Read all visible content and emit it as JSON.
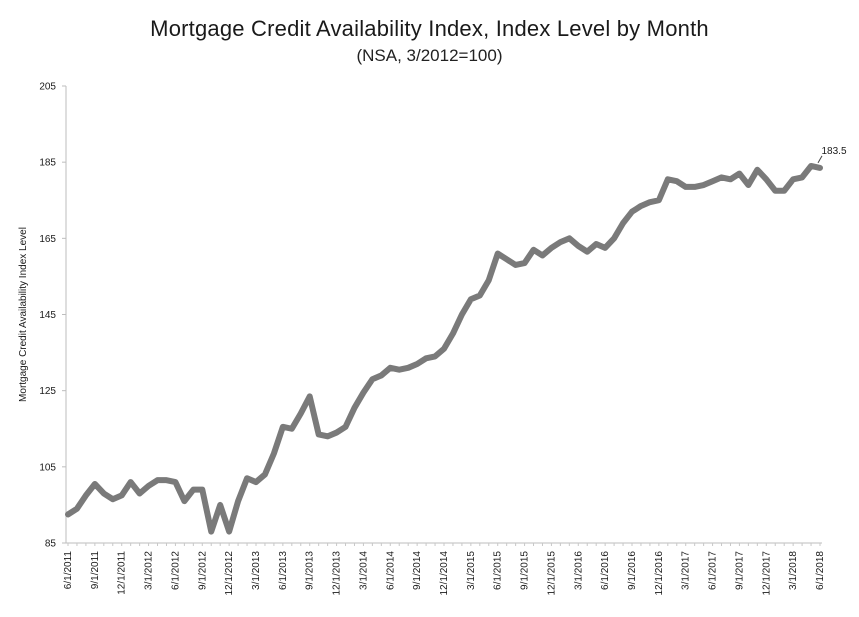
{
  "chart_data": {
    "type": "line",
    "title": "Mortgage Credit Availability Index, Index Level by Month",
    "subtitle": "(NSA, 3/2012=100)",
    "xlabel": "",
    "ylabel": "Mortgage Credit Availability Index Level",
    "ylim": [
      85,
      205
    ],
    "yticks": [
      85,
      105,
      125,
      145,
      165,
      185,
      205
    ],
    "grid": false,
    "xtick_labels": [
      "6/1/2011",
      "9/1/2011",
      "12/1/2011",
      "3/1/2012",
      "6/1/2012",
      "9/1/2012",
      "12/1/2012",
      "3/1/2013",
      "6/1/2013",
      "9/1/2013",
      "12/1/2013",
      "3/1/2014",
      "6/1/2014",
      "9/1/2014",
      "12/1/2014",
      "3/1/2015",
      "6/1/2015",
      "9/1/2015",
      "12/1/2015",
      "3/1/2016",
      "6/1/2016",
      "9/1/2016",
      "12/1/2016",
      "3/1/2017",
      "6/1/2017",
      "9/1/2017",
      "12/1/2017",
      "3/1/2018",
      "6/1/2018"
    ],
    "series": [
      {
        "name": "",
        "color": "#7a7a7a",
        "x_start": "6/1/2011",
        "frequency": "monthly",
        "values": [
          92.5,
          94,
          97.5,
          100.5,
          98,
          96.5,
          97.5,
          101,
          98,
          100,
          101.5,
          101.5,
          101,
          96,
          99,
          99,
          88,
          95,
          88,
          96,
          102,
          101,
          103,
          108.5,
          115.5,
          115,
          119,
          123.5,
          113.5,
          113,
          114,
          115.5,
          120.5,
          124.5,
          128,
          129,
          131,
          130.5,
          131,
          132,
          133.5,
          134,
          136,
          140,
          145,
          149,
          150,
          154,
          161,
          159.5,
          158,
          158.5,
          162,
          160.5,
          162.5,
          164,
          165,
          163,
          161.5,
          163.5,
          162.5,
          165,
          169,
          172,
          173.5,
          174.5,
          175,
          180.5,
          180,
          178.5,
          178.5,
          179,
          180,
          181,
          180.5,
          182,
          179,
          183,
          180.5,
          177.5,
          177.5,
          180.5,
          181,
          184,
          183.5
        ]
      }
    ],
    "annotations": [
      {
        "text": "183.5",
        "target_index": 84
      }
    ]
  }
}
